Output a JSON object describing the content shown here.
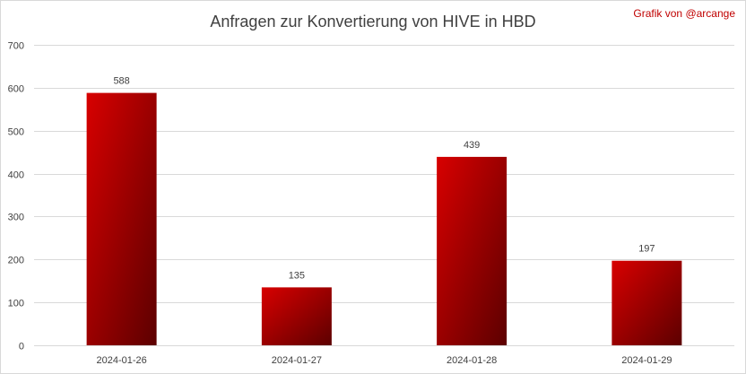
{
  "credit": "Grafik von @arcange",
  "colors": {
    "bar_light": "#d80000",
    "bar_dark": "#5c0000",
    "grid": "#d9d9d9",
    "text": "#404040",
    "credit": "#c00000"
  },
  "chart_data": {
    "type": "bar",
    "title": "Anfragen zur Konvertierung von HIVE in HBD",
    "xlabel": "",
    "ylabel": "",
    "categories": [
      "2024-01-26",
      "2024-01-27",
      "2024-01-28",
      "2024-01-29"
    ],
    "values": [
      588,
      135,
      439,
      197
    ],
    "data_labels": [
      "588",
      "135",
      "439",
      "197"
    ],
    "ylim": [
      0,
      700
    ],
    "yticks": [
      0,
      100,
      200,
      300,
      400,
      500,
      600,
      700
    ],
    "grid": true,
    "legend": "none"
  }
}
